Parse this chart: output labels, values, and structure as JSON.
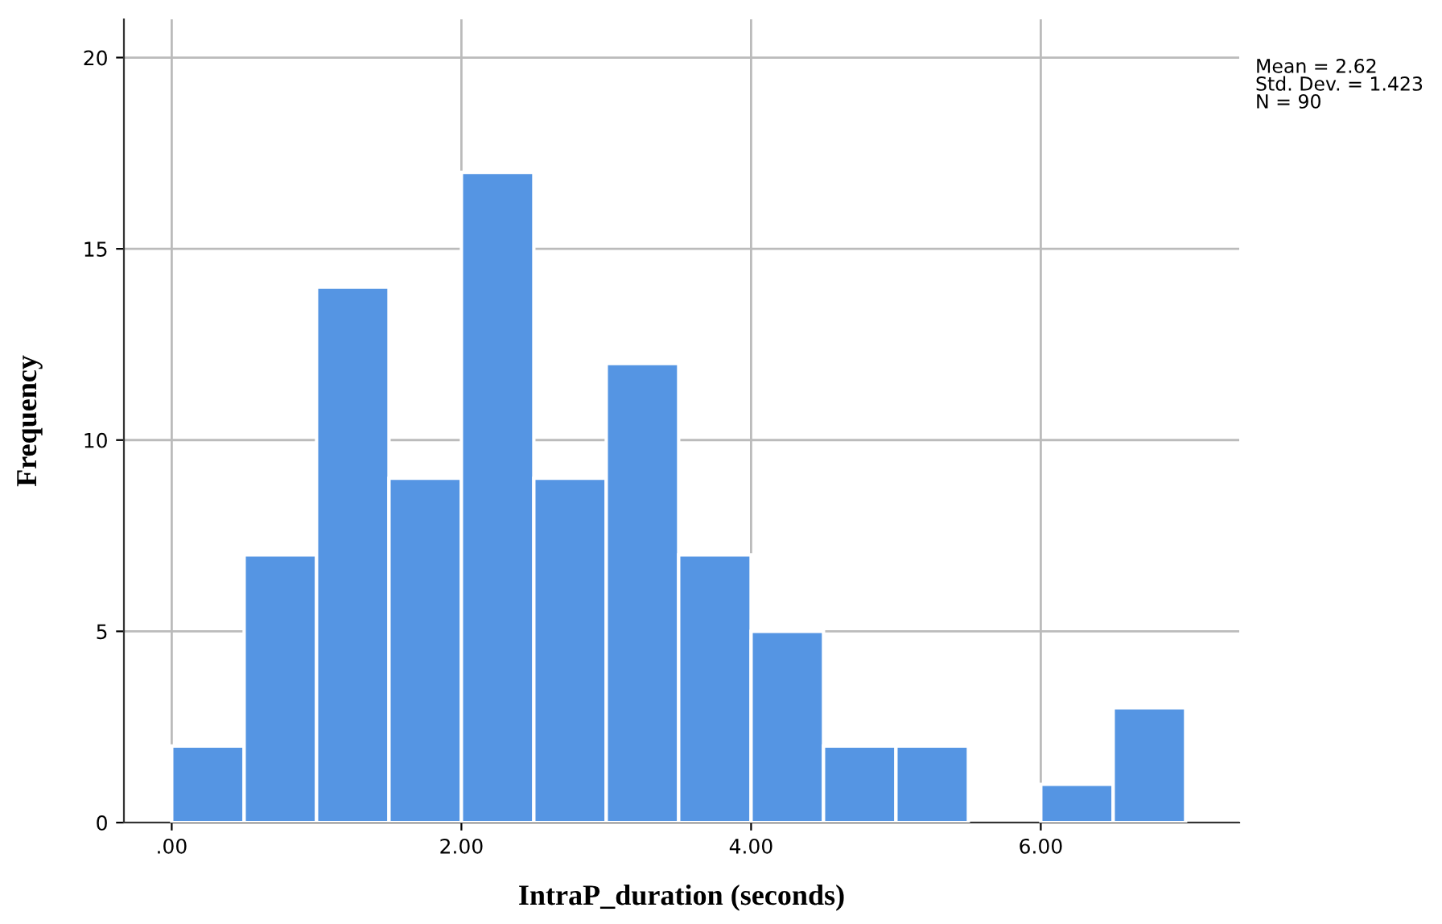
{
  "chart_data": {
    "type": "histogram",
    "xlabel": "IntraP_duration (seconds)",
    "ylabel": "Frequency",
    "bins": [
      0,
      0.5,
      1,
      1.5,
      2,
      2.5,
      3,
      3.5,
      4,
      4.5,
      5,
      5.5,
      6,
      6.5,
      7
    ],
    "values": [
      2,
      7,
      14,
      9,
      17,
      9,
      12,
      7,
      5,
      2,
      2,
      0,
      1,
      3
    ],
    "color": "#5595e3",
    "xlim": [
      -0.33,
      7.37
    ],
    "ylim": [
      0,
      21
    ],
    "xticks": [
      {
        "value": 0,
        "label": ".00"
      },
      {
        "value": 2,
        "label": "2.00"
      },
      {
        "value": 4,
        "label": "4.00"
      },
      {
        "value": 6,
        "label": "6.00"
      }
    ],
    "yticks": [
      0,
      5,
      10,
      15,
      20
    ],
    "grid": true,
    "annotations": [
      "Mean = 2.62",
      "Std. Dev. = 1.423",
      "N = 90"
    ]
  }
}
